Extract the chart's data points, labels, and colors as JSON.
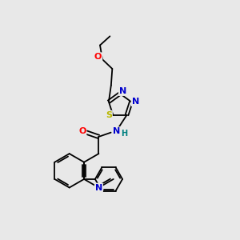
{
  "bg_color": "#e8e8e8",
  "bond_color": "#000000",
  "atom_colors": {
    "N": "#0000cd",
    "O": "#ff0000",
    "S": "#b8b800",
    "H": "#008080",
    "C": "#000000"
  },
  "lw": 1.3,
  "font_size": 8
}
